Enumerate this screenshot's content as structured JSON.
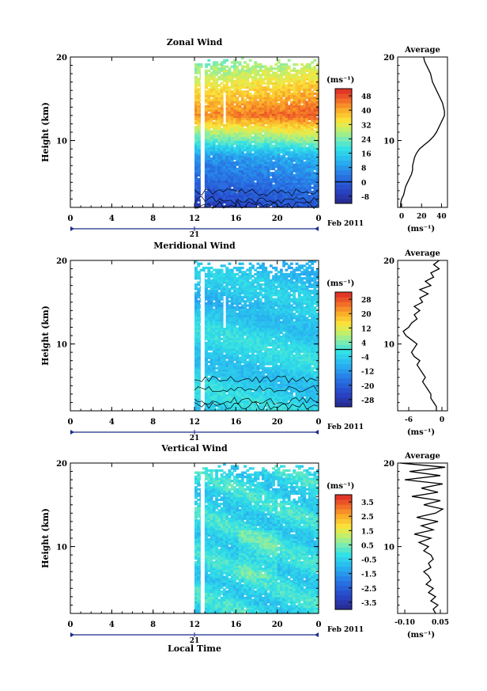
{
  "figure": {
    "xlabel": "Local Time",
    "date_label": "Feb 2011",
    "day_label": "21",
    "units_label": "(ms⁻¹)",
    "average_title": "Average"
  },
  "chart_data": [
    {
      "type": "heatmap",
      "title": "Zonal Wind",
      "ylabel": "Height (km)",
      "xlabel": "",
      "x_ticks": [
        "0",
        "4",
        "8",
        "12",
        "16",
        "20",
        "0"
      ],
      "x_range_hours": [
        0,
        24
      ],
      "y_ticks": [
        "20",
        "10"
      ],
      "ylim": [
        2,
        20
      ],
      "data_start_hour": 12,
      "colorbar": {
        "ticks": [
          "48",
          "40",
          "32",
          "24",
          "16",
          "8",
          "0",
          "-8"
        ],
        "range": [
          -12,
          52
        ],
        "contour_level": 0
      },
      "profile": {
        "title": "Average",
        "xlabel": "(ms⁻¹)",
        "x_ticks": [
          "0",
          "20",
          "40"
        ],
        "xlim": [
          -4,
          46
        ],
        "heights": [
          2,
          2.5,
          3,
          3.5,
          4,
          4.5,
          5,
          5.5,
          6,
          6.5,
          7,
          7.5,
          8,
          8.5,
          9,
          9.5,
          10,
          10.5,
          11,
          11.5,
          12,
          12.5,
          13,
          13.5,
          14,
          14.5,
          15,
          15.5,
          16,
          16.5,
          17,
          17.5,
          18,
          18.5,
          19,
          19.5,
          20
        ],
        "values": [
          -1,
          -1,
          0,
          2,
          3,
          4,
          6,
          8,
          10,
          11,
          11,
          12,
          13,
          15,
          18,
          23,
          28,
          32,
          35,
          37,
          39,
          41,
          43,
          43,
          42,
          41,
          39,
          37,
          35,
          33,
          31,
          30,
          29,
          27,
          25,
          23,
          22
        ]
      }
    },
    {
      "type": "heatmap",
      "title": "Meridional Wind",
      "ylabel": "Height (km)",
      "xlabel": "",
      "x_ticks": [
        "0",
        "4",
        "8",
        "12",
        "16",
        "20",
        "0"
      ],
      "x_range_hours": [
        0,
        24
      ],
      "y_ticks": [
        "20",
        "10"
      ],
      "ylim": [
        2,
        20
      ],
      "data_start_hour": 12,
      "colorbar": {
        "ticks": [
          "28",
          "20",
          "12",
          "4",
          "-4",
          "-12",
          "-20",
          "-28"
        ],
        "range": [
          -32,
          32
        ],
        "contour_level": 0
      },
      "profile": {
        "title": "Average",
        "xlabel": "(ms⁻¹)",
        "x_ticks": [
          "-6",
          "0"
        ],
        "xlim": [
          -8,
          1
        ],
        "heights": [
          2,
          2.5,
          3,
          3.5,
          4,
          4.5,
          5,
          5.5,
          6,
          6.5,
          7,
          7.5,
          8,
          8.5,
          9,
          9.5,
          10,
          10.5,
          11,
          11.5,
          12,
          12.5,
          13,
          13.5,
          14,
          14.5,
          15,
          15.5,
          16,
          16.5,
          17,
          17.5,
          18,
          18.5,
          19,
          19.5,
          20
        ],
        "values": [
          -1,
          -1,
          -1.5,
          -2,
          -2,
          -2.5,
          -3,
          -3.5,
          -3,
          -3.5,
          -4,
          -4.5,
          -4,
          -5,
          -5.5,
          -5,
          -4.5,
          -5.5,
          -6.5,
          -7,
          -6,
          -5.5,
          -4.5,
          -5,
          -4,
          -5,
          -3.5,
          -4,
          -2.5,
          -4,
          -2,
          -3,
          -1.5,
          -2,
          -0.5,
          -1.5,
          -0.5
        ]
      }
    },
    {
      "type": "heatmap",
      "title": "Vertical Wind",
      "ylabel": "Height (km)",
      "xlabel": "Local Time",
      "x_ticks": [
        "0",
        "4",
        "8",
        "12",
        "16",
        "20",
        "0"
      ],
      "x_range_hours": [
        0,
        24
      ],
      "y_ticks": [
        "20",
        "10"
      ],
      "ylim": [
        2,
        20
      ],
      "data_start_hour": 12,
      "colorbar": {
        "ticks": [
          "3.5",
          "2.5",
          "1.5",
          "0.5",
          "-0.5",
          "-1.5",
          "-2.5",
          "-3.5"
        ],
        "range": [
          -4,
          4
        ],
        "contour_level": null
      },
      "profile": {
        "title": "Average",
        "xlabel": "(ms⁻¹)",
        "x_ticks": [
          "-0.10",
          "0.05"
        ],
        "xlim": [
          -0.13,
          0.08
        ],
        "heights": [
          2,
          2.5,
          3,
          3.5,
          4,
          4.5,
          5,
          5.5,
          6,
          6.5,
          7,
          7.5,
          8,
          8.5,
          9,
          9.5,
          10,
          10.5,
          11,
          11.5,
          12,
          12.5,
          13,
          13.5,
          14,
          14.5,
          15,
          15.5,
          16,
          16.5,
          17,
          17.5,
          18,
          18.5,
          19,
          19.5,
          20
        ],
        "values": [
          0.03,
          0.02,
          0.04,
          0.01,
          0.03,
          0.0,
          0.02,
          -0.01,
          0.01,
          0.0,
          -0.02,
          0.01,
          0.0,
          0.02,
          0.01,
          -0.02,
          0.0,
          -0.04,
          0.01,
          -0.06,
          0.02,
          -0.03,
          0.04,
          -0.05,
          0.03,
          0.06,
          -0.02,
          0.05,
          -0.07,
          0.04,
          -0.03,
          0.06,
          -0.1,
          0.05,
          -0.08,
          0.07,
          -0.12
        ]
      }
    }
  ]
}
